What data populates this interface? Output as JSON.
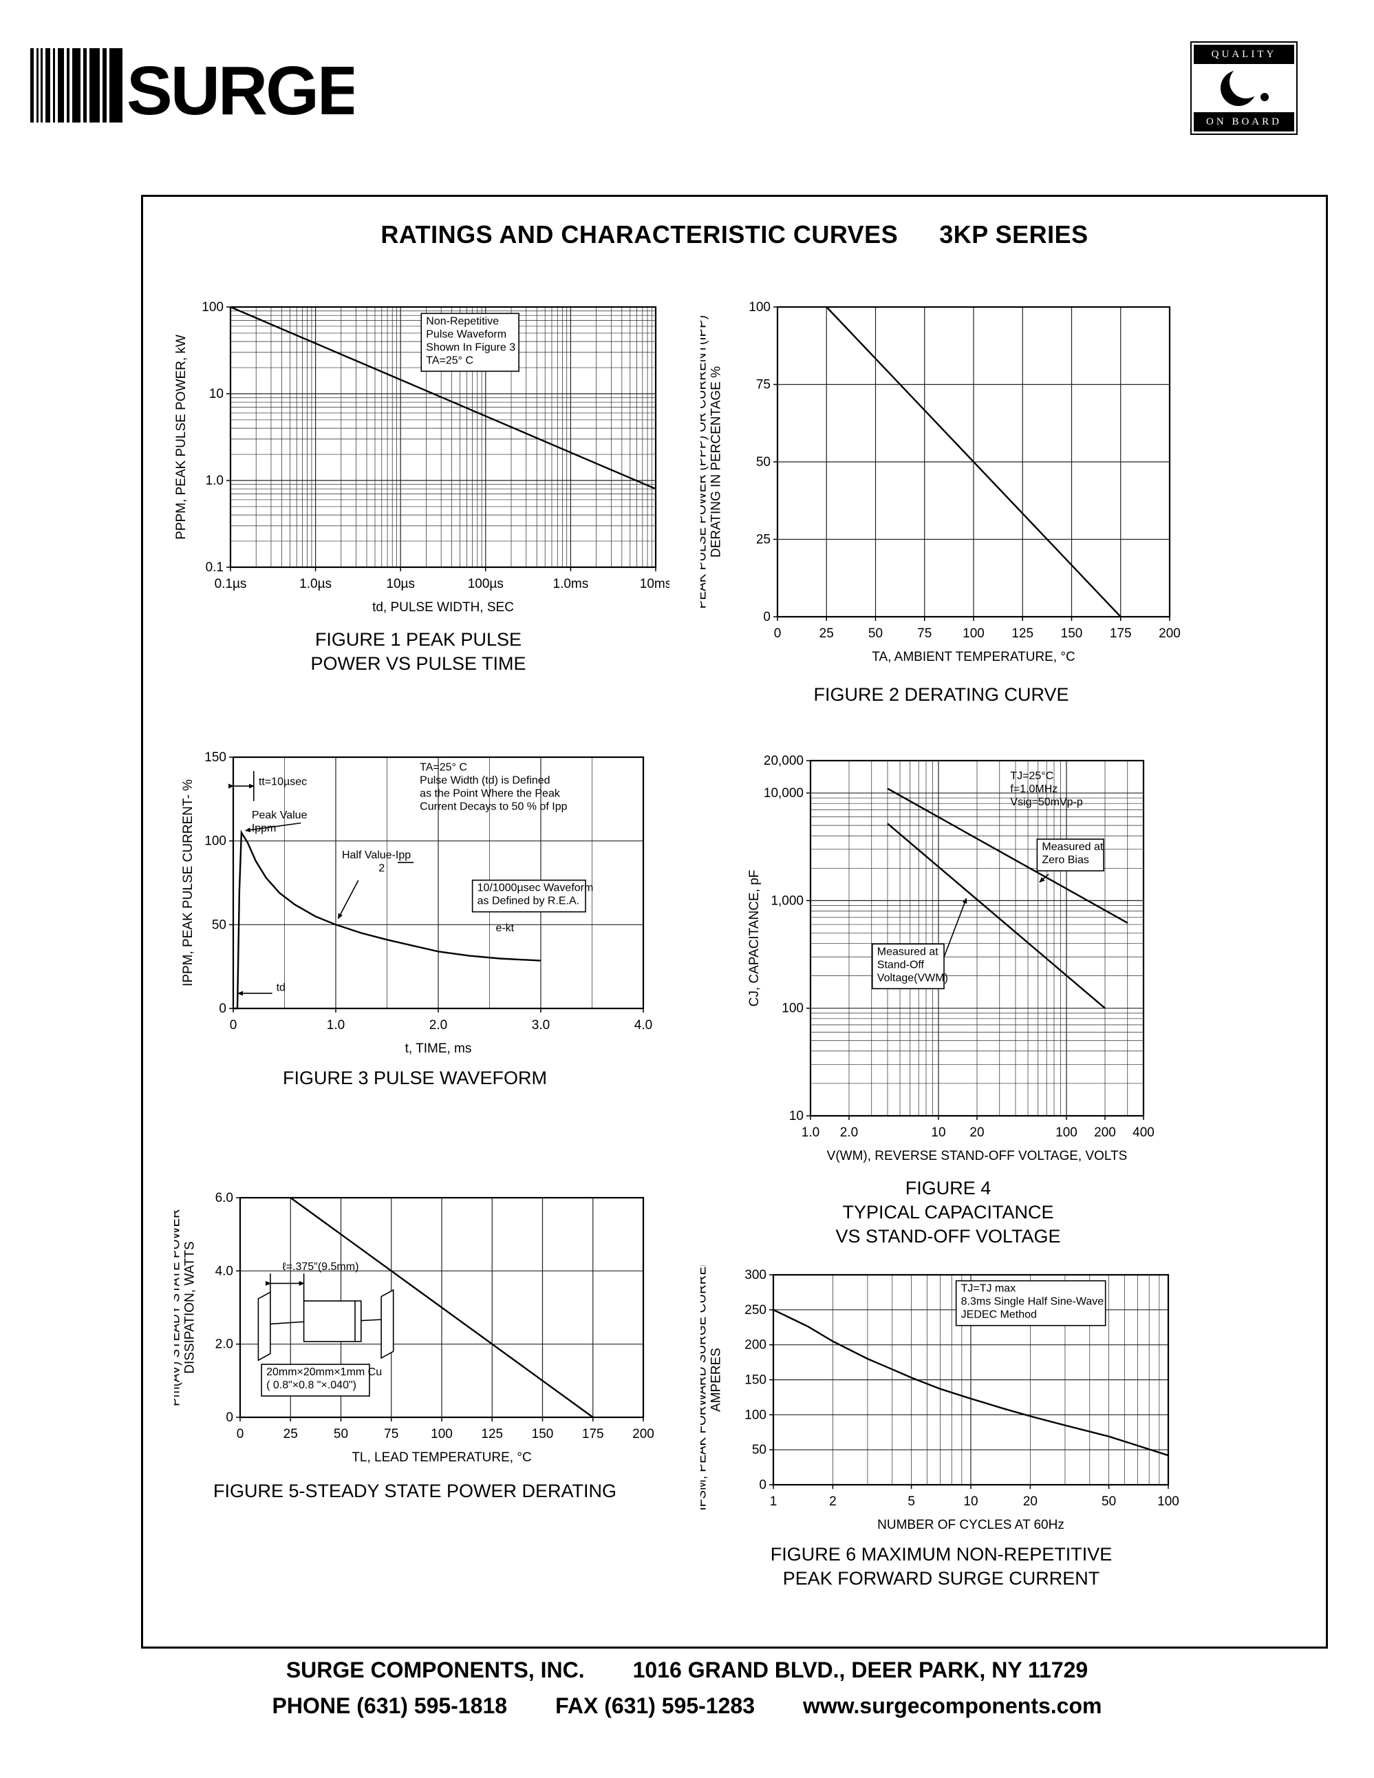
{
  "header": {
    "logo_text": "SURGE",
    "badge_top": "QUALITY",
    "badge_bottom": "ON BOARD",
    "title": "RATINGS AND CHARACTERISTIC CURVES",
    "series_label": "3KP SERIES"
  },
  "footer": {
    "company": "SURGE COMPONENTS, INC.",
    "address": "1016 GRAND BLVD., DEER PARK, NY  11729",
    "phone": "PHONE (631) 595-1818",
    "fax": "FAX (631) 595-1283",
    "website": "www.surgecomponents.com"
  },
  "chart_data": [
    {
      "id": "fig1",
      "type": "line",
      "xscale": "log",
      "yscale": "log",
      "xlim": [
        1e-07,
        0.01
      ],
      "ylim": [
        0.1,
        100
      ],
      "xlabel": "td, PULSE WIDTH, SEC",
      "ylabel": "PPPM, PEAK PULSE POWER, kW",
      "xticks": [
        {
          "v": 1e-07,
          "l": "0.1µs"
        },
        {
          "v": 1e-06,
          "l": "1.0µs"
        },
        {
          "v": 1e-05,
          "l": "10µs"
        },
        {
          "v": 0.0001,
          "l": "100µs"
        },
        {
          "v": 0.001,
          "l": "1.0ms"
        },
        {
          "v": 0.01,
          "l": "10ms"
        }
      ],
      "yticks": [
        {
          "v": 0.1,
          "l": "0.1"
        },
        {
          "v": 1,
          "l": "1.0"
        },
        {
          "v": 10,
          "l": "10"
        },
        {
          "v": 100,
          "l": "100"
        }
      ],
      "series": [
        {
          "name": "peak-pulse-power",
          "points": [
            [
              1e-07,
              100
            ],
            [
              0.01,
              0.8
            ]
          ]
        }
      ],
      "annotations": [
        {
          "boxed": true,
          "fx": 0.46,
          "fy": 0.03,
          "lines": [
            "Non-Repetitive",
            "Pulse Waveform",
            "Shown In Figure 3",
            "TA=25° C"
          ]
        }
      ],
      "caption": "FIGURE 1 PEAK PULSE\nPOWER VS PULSE TIME"
    },
    {
      "id": "fig2",
      "type": "line",
      "xscale": "linear",
      "yscale": "linear",
      "xlim": [
        0,
        200
      ],
      "ylim": [
        0,
        100
      ],
      "xlabel": "TA, AMBIENT  TEMPERATURE, °C",
      "ylabel": "PEAK PULSE POWER (PPP) OR CURRENT(IPP)\nDERATING IN PERCENTAGE %",
      "xticks": [
        {
          "v": 0,
          "l": "0"
        },
        {
          "v": 25,
          "l": "25"
        },
        {
          "v": 50,
          "l": "50"
        },
        {
          "v": 75,
          "l": "75"
        },
        {
          "v": 100,
          "l": "100"
        },
        {
          "v": 125,
          "l": "125"
        },
        {
          "v": 150,
          "l": "150"
        },
        {
          "v": 175,
          "l": "175"
        },
        {
          "v": 200,
          "l": "200"
        }
      ],
      "yticks": [
        {
          "v": 0,
          "l": "0"
        },
        {
          "v": 25,
          "l": "25"
        },
        {
          "v": 50,
          "l": "50"
        },
        {
          "v": 75,
          "l": "75"
        },
        {
          "v": 100,
          "l": "100"
        }
      ],
      "series": [
        {
          "name": "derating",
          "points": [
            [
              25,
              100
            ],
            [
              175,
              0
            ]
          ]
        }
      ],
      "caption": "FIGURE 2 DERATING CURVE"
    },
    {
      "id": "fig3",
      "type": "line",
      "xscale": "linear",
      "yscale": "linear",
      "xlim": [
        0,
        4
      ],
      "ylim": [
        0,
        150
      ],
      "xlabel": "t, TIME, ms",
      "ylabel": "IPPM, PEAK PULSE CURRENT- %",
      "xticks": [
        {
          "v": 0,
          "l": "0"
        },
        {
          "v": 1,
          "l": "1.0"
        },
        {
          "v": 2,
          "l": "2.0"
        },
        {
          "v": 3,
          "l": "3.0"
        },
        {
          "v": 4,
          "l": "4.0"
        }
      ],
      "yticks": [
        {
          "v": 0,
          "l": "0"
        },
        {
          "v": 50,
          "l": "50"
        },
        {
          "v": 100,
          "l": "100"
        },
        {
          "v": 150,
          "l": "150"
        }
      ],
      "series": [
        {
          "name": "pulse-waveform",
          "points": [
            [
              0,
              0
            ],
            [
              0.04,
              0
            ],
            [
              0.06,
              70
            ],
            [
              0.08,
              105
            ],
            [
              0.14,
              99
            ],
            [
              0.22,
              88
            ],
            [
              0.32,
              78
            ],
            [
              0.45,
              69
            ],
            [
              0.6,
              62
            ],
            [
              0.8,
              55
            ],
            [
              1.0,
              50
            ],
            [
              1.25,
              45
            ],
            [
              1.5,
              41
            ],
            [
              1.75,
              37.5
            ],
            [
              2.0,
              34
            ],
            [
              2.3,
              31.5
            ],
            [
              2.6,
              29.8
            ],
            [
              3.0,
              28.5
            ]
          ]
        }
      ],
      "annotations": [
        {
          "fx": 0.455,
          "fy": 0.015,
          "lines": [
            "TA=25° C",
            "Pulse Width (td) is Defined",
            "as the Point Where the Peak",
            "Current Decays to 50 % of Ipp"
          ]
        },
        {
          "fx": 0.062,
          "fy": 0.072,
          "lines": [
            "tt=10µsec"
          ]
        },
        {
          "fx": 0.045,
          "fy": 0.205,
          "lines": [
            "Peak Value",
            "Ippm"
          ]
        },
        {
          "fx": 0.265,
          "fy": 0.365,
          "lines": [
            "Half Value-Ipp",
            "            2"
          ]
        },
        {
          "boxed": true,
          "fx": 0.595,
          "fy": 0.495,
          "lines": [
            "10/1000µsec Waveform",
            "as Defined by R.E.A."
          ]
        },
        {
          "fx": 0.64,
          "fy": 0.655,
          "lines": [
            "e-kt"
          ]
        },
        {
          "fx": 0.105,
          "fy": 0.892,
          "lines": [
            "td"
          ]
        }
      ],
      "draw": [
        {
          "x1": 0.0,
          "y1": 0.115,
          "x2": 0.05,
          "y2": 0.115,
          "arrow": "both"
        },
        {
          "x1": 0.05,
          "y1": 0.055,
          "x2": 0.05,
          "y2": 0.175
        },
        {
          "x1": 0.165,
          "y1": 0.262,
          "x2": 0.03,
          "y2": 0.292,
          "arrow": "end"
        },
        {
          "x1": 0.401,
          "y1": 0.419,
          "x2": 0.44,
          "y2": 0.419
        },
        {
          "x1": 0.305,
          "y1": 0.49,
          "x2": 0.256,
          "y2": 0.642,
          "arrow": "end"
        },
        {
          "x1": 0.095,
          "y1": 0.94,
          "x2": 0.012,
          "y2": 0.94,
          "arrow": "end"
        }
      ],
      "caption": "FIGURE 3  PULSE WAVEFORM"
    },
    {
      "id": "fig4",
      "type": "line",
      "xscale": "log",
      "yscale": "log",
      "xlim": [
        1,
        400
      ],
      "ylim": [
        10,
        20000
      ],
      "xlabel": "V(WM), REVERSE STAND-OFF VOLTAGE, VOLTS",
      "ylabel": "CJ, CAPACITANCE, pF",
      "xticks": [
        {
          "v": 1,
          "l": "1.0"
        },
        {
          "v": 2,
          "l": "2.0"
        },
        {
          "v": 10,
          "l": "10"
        },
        {
          "v": 20,
          "l": "20"
        },
        {
          "v": 100,
          "l": "100"
        },
        {
          "v": 200,
          "l": "200"
        },
        {
          "v": 400,
          "l": "400"
        }
      ],
      "yticks": [
        {
          "v": 10,
          "l": "10"
        },
        {
          "v": 100,
          "l": "100"
        },
        {
          "v": 1000,
          "l": "1,000"
        },
        {
          "v": 10000,
          "l": "10,000"
        },
        {
          "v": 20000,
          "l": "20,000"
        }
      ],
      "series": [
        {
          "name": "zero-bias",
          "points": [
            [
              4,
              11000
            ],
            [
              300,
              620
            ]
          ]
        },
        {
          "name": "stand-off-voltage",
          "points": [
            [
              4,
              5200
            ],
            [
              200,
              100
            ]
          ]
        }
      ],
      "annotations": [
        {
          "fx": 0.6,
          "fy": 0.025,
          "lines": [
            "TJ=25°C",
            "f=1.0MHz",
            "Vsig=50mVp-p"
          ]
        },
        {
          "boxed": true,
          "fx": 0.695,
          "fy": 0.225,
          "lines": [
            "Measured at",
            "Zero Bias"
          ]
        },
        {
          "boxed": true,
          "fx": 0.2,
          "fy": 0.52,
          "lines": [
            "Measured at",
            "Stand-Off",
            "Voltage(VWM)"
          ]
        }
      ],
      "draw": [
        {
          "x1": 0.715,
          "y1": 0.32,
          "x2": 0.688,
          "y2": 0.342,
          "arrow": "end"
        },
        {
          "x1": 0.4,
          "y1": 0.555,
          "x2": 0.468,
          "y2": 0.388,
          "arrow": "end"
        }
      ],
      "caption": "FIGURE 4\nTYPICAL CAPACITANCE\nVS STAND-OFF VOLTAGE"
    },
    {
      "id": "fig5",
      "type": "line",
      "xscale": "linear",
      "yscale": "linear",
      "xlim": [
        0,
        200
      ],
      "ylim": [
        0,
        6
      ],
      "xlabel": "TL, LEAD  TEMPERATURE, °C",
      "ylabel": "Pm(AV) STEADY STATE POWER\nDISSIPATION, WATTS",
      "xticks": [
        {
          "v": 0,
          "l": "0"
        },
        {
          "v": 25,
          "l": "25"
        },
        {
          "v": 50,
          "l": "50"
        },
        {
          "v": 75,
          "l": "75"
        },
        {
          "v": 100,
          "l": "100"
        },
        {
          "v": 125,
          "l": "125"
        },
        {
          "v": 150,
          "l": "150"
        },
        {
          "v": 175,
          "l": "175"
        },
        {
          "v": 200,
          "l": "200"
        }
      ],
      "yticks": [
        {
          "v": 0,
          "l": "0"
        },
        {
          "v": 2,
          "l": "2.0"
        },
        {
          "v": 4,
          "l": "4.0"
        },
        {
          "v": 6,
          "l": "6.0"
        }
      ],
      "series": [
        {
          "name": "steady-state-power",
          "points": [
            [
              25,
              6
            ],
            [
              175,
              0
            ]
          ]
        }
      ],
      "annotations": [
        {
          "fx": 0.105,
          "fy": 0.285,
          "lines": [
            "ℓ=.375\"(9.5mm)"
          ]
        },
        {
          "boxed": true,
          "fx": 0.065,
          "fy": 0.765,
          "lines": [
            "20mm×20mm×1mm Cu",
            "( 0.8\"×0.8 \"×.040\")"
          ]
        }
      ],
      "draw": [
        {
          "x1": 0.075,
          "y1": 0.39,
          "x2": 0.158,
          "y2": 0.39,
          "arrow": "both"
        }
      ],
      "caption": "FIGURE 5-STEADY STATE POWER DERATING"
    },
    {
      "id": "fig6",
      "type": "line",
      "xscale": "log",
      "yscale": "linear",
      "xlim": [
        1,
        100
      ],
      "ylim": [
        0,
        300
      ],
      "xlabel": "NUMBER  OF  CYCLES  AT  60Hz",
      "ylabel": "IFSM, PEAK FORWARD SURGE CURRENT\nAMPERES",
      "xticks": [
        {
          "v": 1,
          "l": "1"
        },
        {
          "v": 2,
          "l": "2"
        },
        {
          "v": 5,
          "l": "5"
        },
        {
          "v": 10,
          "l": "10"
        },
        {
          "v": 20,
          "l": "20"
        },
        {
          "v": 50,
          "l": "50"
        },
        {
          "v": 100,
          "l": "100"
        }
      ],
      "yticks": [
        {
          "v": 0,
          "l": "0"
        },
        {
          "v": 50,
          "l": "50"
        },
        {
          "v": 100,
          "l": "100"
        },
        {
          "v": 150,
          "l": "150"
        },
        {
          "v": 200,
          "l": "200"
        },
        {
          "v": 250,
          "l": "250"
        },
        {
          "v": 300,
          "l": "300"
        }
      ],
      "series": [
        {
          "name": "surge-current",
          "points": [
            [
              1,
              250
            ],
            [
              1.5,
              226
            ],
            [
              2,
              205
            ],
            [
              3,
              180
            ],
            [
              4,
              165
            ],
            [
              5,
              153
            ],
            [
              7,
              137
            ],
            [
              10,
              123
            ],
            [
              15,
              108
            ],
            [
              20,
              98
            ],
            [
              30,
              85
            ],
            [
              50,
              69
            ],
            [
              70,
              56
            ],
            [
              100,
              42
            ]
          ]
        }
      ],
      "annotations": [
        {
          "boxed": true,
          "fx": 0.475,
          "fy": 0.035,
          "lines": [
            "TJ=TJ max",
            "8.3ms Single Half Sine-Wave",
            "JEDEC Method"
          ]
        }
      ],
      "caption": "FIGURE 6  MAXIMUM NON-REPETITIVE\nPEAK FORWARD SURGE CURRENT"
    }
  ]
}
